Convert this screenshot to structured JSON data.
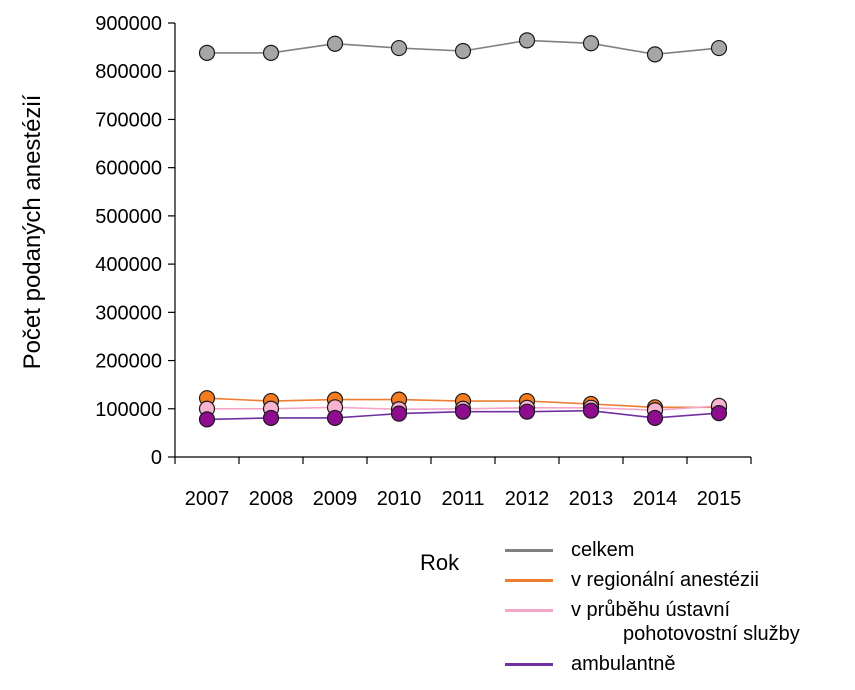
{
  "chart_data": {
    "type": "line",
    "title": "",
    "xlabel": "",
    "ylabel": "Počet podaných anestézií",
    "x": [
      "2007",
      "2008",
      "2009",
      "2010",
      "2011",
      "2012",
      "2013",
      "2014",
      "2015"
    ],
    "ylim": [
      0,
      900000
    ],
    "yticks": [
      "0",
      "100000",
      "200000",
      "300000",
      "400000",
      "500000",
      "600000",
      "700000",
      "800000",
      "900000"
    ],
    "grid": false,
    "legend_title": "Rok",
    "legend_position": "bottom-right",
    "series": [
      {
        "name": "celkem",
        "color": "#808080",
        "marker_color": "#a6a6a6",
        "values": [
          838000,
          838000,
          857000,
          848000,
          842000,
          864000,
          858000,
          835000,
          848000
        ]
      },
      {
        "name": "v regionální anestézii",
        "color": "#ed7d31",
        "marker_color": "#f47b20",
        "values": [
          122000,
          116000,
          119000,
          119000,
          116000,
          116000,
          110000,
          103000,
          103000
        ]
      },
      {
        "name": "v průběhu ústavní",
        "name_line2": "pohotovostní služby",
        "color": "#f4a6c8",
        "marker_color": "#f7b3d0",
        "values": [
          100000,
          100000,
          103000,
          99000,
          100000,
          102000,
          102000,
          97000,
          106000
        ]
      },
      {
        "name": "ambulantně",
        "color": "#7030a0",
        "marker_color": "#8e0c8e",
        "values": [
          78000,
          81000,
          81000,
          90000,
          94000,
          94000,
          96000,
          81000,
          91000
        ]
      }
    ]
  }
}
